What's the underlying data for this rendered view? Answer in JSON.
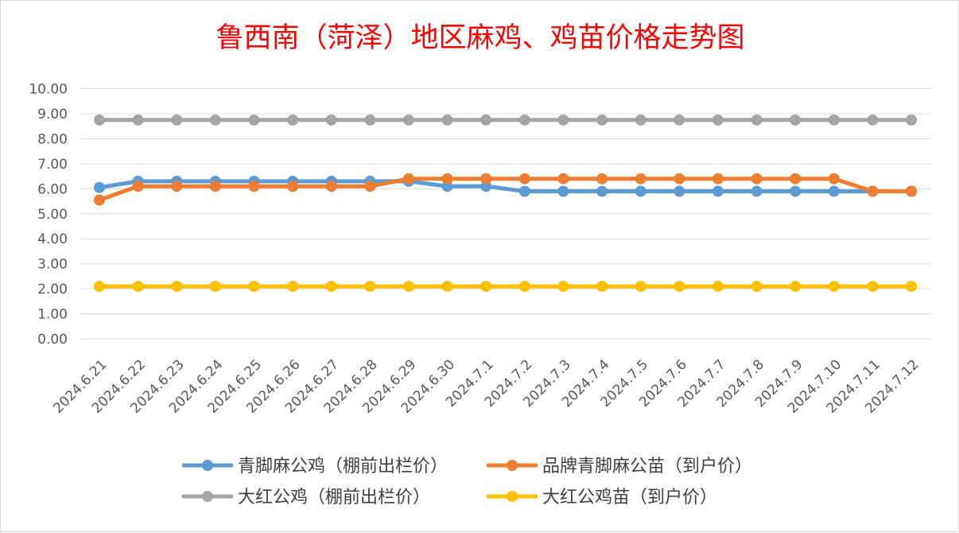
{
  "chart_data": {
    "type": "line",
    "title": "鲁西南（菏泽）地区麻鸡、鸡苗价格走势图",
    "title_color": "#ff0000",
    "xlabel": "",
    "ylabel": "",
    "ylim": [
      0,
      10
    ],
    "yticks": [
      "0.00",
      "1.00",
      "2.00",
      "3.00",
      "4.00",
      "5.00",
      "6.00",
      "7.00",
      "8.00",
      "9.00",
      "10.00"
    ],
    "grid": "horizontal",
    "legend_position": "bottom",
    "categories": [
      "2024.6.21",
      "2024.6.22",
      "2024.6.23",
      "2024.6.24",
      "2024.6.25",
      "2024.6.26",
      "2024.6.27",
      "2024.6.28",
      "2024.6.29",
      "2024.6.30",
      "2024.7.1",
      "2024.7.2",
      "2024.7.3",
      "2024.7.4",
      "2024.7.5",
      "2024.7.6",
      "2024.7.7",
      "2024.7.8",
      "2024.7.9",
      "2024.7.10",
      "2024.7.11",
      "2024.7.12"
    ],
    "series": [
      {
        "name": "青脚麻公鸡（棚前出栏价）",
        "color": "#5b9bd5",
        "values": [
          6.05,
          6.3,
          6.3,
          6.3,
          6.3,
          6.3,
          6.3,
          6.3,
          6.3,
          6.1,
          6.1,
          5.9,
          5.9,
          5.9,
          5.9,
          5.9,
          5.9,
          5.9,
          5.9,
          5.9,
          5.9,
          5.9
        ]
      },
      {
        "name": "品牌青脚麻公苗（到户价）",
        "color": "#ed7d31",
        "values": [
          5.55,
          6.1,
          6.1,
          6.1,
          6.1,
          6.1,
          6.1,
          6.1,
          6.4,
          6.4,
          6.4,
          6.4,
          6.4,
          6.4,
          6.4,
          6.4,
          6.4,
          6.4,
          6.4,
          6.4,
          5.9,
          5.9
        ]
      },
      {
        "name": "大红公鸡（棚前出栏价）",
        "color": "#a5a5a5",
        "values": [
          8.75,
          8.75,
          8.75,
          8.75,
          8.75,
          8.75,
          8.75,
          8.75,
          8.75,
          8.75,
          8.75,
          8.75,
          8.75,
          8.75,
          8.75,
          8.75,
          8.75,
          8.75,
          8.75,
          8.75,
          8.75,
          8.75
        ]
      },
      {
        "name": "大红公鸡苗（到户价）",
        "color": "#ffc000",
        "values": [
          2.1,
          2.1,
          2.1,
          2.1,
          2.1,
          2.1,
          2.1,
          2.1,
          2.1,
          2.1,
          2.1,
          2.1,
          2.1,
          2.1,
          2.1,
          2.1,
          2.1,
          2.1,
          2.1,
          2.1,
          2.1,
          2.1
        ]
      }
    ]
  }
}
